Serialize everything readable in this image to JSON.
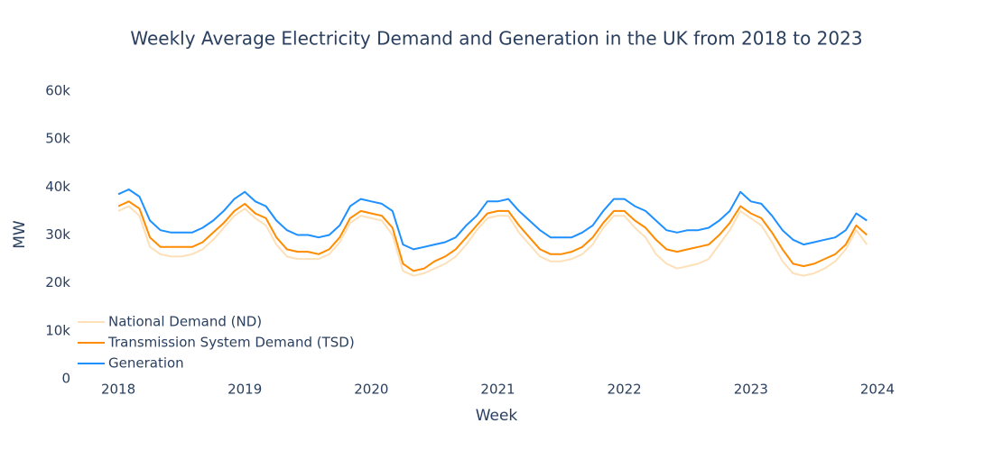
{
  "chart_data": {
    "type": "line",
    "title": "Weekly Average Electricity Demand and Generation in the UK from 2018 to 2023",
    "x_label": "Week",
    "y_label": "MW",
    "x": [
      2018,
      2018.083,
      2018.167,
      2018.25,
      2018.333,
      2018.417,
      2018.5,
      2018.583,
      2018.667,
      2018.75,
      2018.833,
      2018.917,
      2019,
      2019.083,
      2019.167,
      2019.25,
      2019.333,
      2019.417,
      2019.5,
      2019.583,
      2019.667,
      2019.75,
      2019.833,
      2019.917,
      2020,
      2020.083,
      2020.167,
      2020.25,
      2020.333,
      2020.417,
      2020.5,
      2020.583,
      2020.667,
      2020.75,
      2020.833,
      2020.917,
      2021,
      2021.083,
      2021.167,
      2021.25,
      2021.333,
      2021.417,
      2021.5,
      2021.583,
      2021.667,
      2021.75,
      2021.833,
      2021.917,
      2022,
      2022.083,
      2022.167,
      2022.25,
      2022.333,
      2022.417,
      2022.5,
      2022.583,
      2022.667,
      2022.75,
      2022.833,
      2022.917,
      2023,
      2023.083,
      2023.167,
      2023.25,
      2023.333,
      2023.417,
      2023.5,
      2023.583,
      2023.667,
      2023.75,
      2023.833,
      2023.917
    ],
    "series": [
      {
        "name": "National Demand (ND)",
        "color": "#fde0b8",
        "values": [
          35000,
          36000,
          34000,
          27500,
          26000,
          25500,
          25500,
          26000,
          27000,
          29000,
          31500,
          34000,
          35500,
          33500,
          32000,
          28000,
          25500,
          25000,
          25000,
          25000,
          26000,
          28500,
          32500,
          34000,
          33500,
          33000,
          30000,
          22500,
          21500,
          22000,
          23000,
          24000,
          25500,
          28000,
          31000,
          33500,
          34000,
          34000,
          30500,
          28000,
          25500,
          24500,
          24500,
          25000,
          26000,
          28000,
          31500,
          34000,
          34000,
          31500,
          29500,
          26000,
          24000,
          23000,
          23500,
          24000,
          25000,
          28000,
          31000,
          35000,
          33500,
          32000,
          28500,
          24500,
          22000,
          21500,
          22000,
          23000,
          24500,
          27000,
          31000,
          28000
        ]
      },
      {
        "name": "Transmission System Demand (TSD)",
        "color": "#ff8c00",
        "values": [
          36000,
          37000,
          35500,
          29500,
          27500,
          27500,
          27500,
          27500,
          28500,
          30500,
          32500,
          35000,
          36500,
          34500,
          33500,
          29500,
          27000,
          26500,
          26500,
          26000,
          27000,
          29500,
          33500,
          35000,
          34500,
          34000,
          31500,
          24000,
          22500,
          23000,
          24500,
          25500,
          27000,
          29500,
          32000,
          34500,
          35000,
          35000,
          32000,
          29500,
          27000,
          26000,
          26000,
          26500,
          27500,
          29500,
          32500,
          35000,
          35000,
          33000,
          31500,
          29000,
          27000,
          26500,
          27000,
          27500,
          28000,
          30000,
          32500,
          36000,
          34500,
          33500,
          30500,
          27000,
          24000,
          23500,
          24000,
          25000,
          26000,
          28000,
          32000,
          30000
        ]
      },
      {
        "name": "Generation",
        "color": "#1e90ff",
        "values": [
          38500,
          39500,
          38000,
          33000,
          31000,
          30500,
          30500,
          30500,
          31500,
          33000,
          35000,
          37500,
          39000,
          37000,
          36000,
          33000,
          31000,
          30000,
          30000,
          29500,
          30000,
          32000,
          36000,
          37500,
          37000,
          36500,
          35000,
          28000,
          27000,
          27500,
          28000,
          28500,
          29500,
          32000,
          34000,
          37000,
          37000,
          37500,
          35000,
          33000,
          31000,
          29500,
          29500,
          29500,
          30500,
          32000,
          35000,
          37500,
          37500,
          36000,
          35000,
          33000,
          31000,
          30500,
          31000,
          31000,
          31500,
          33000,
          35000,
          39000,
          37000,
          36500,
          34000,
          31000,
          29000,
          28000,
          28500,
          29000,
          29500,
          31000,
          34500,
          33000
        ]
      }
    ],
    "xlim": [
      2017.65,
      2024.35
    ],
    "xticks": [
      2018,
      2019,
      2020,
      2021,
      2022,
      2023,
      2024
    ],
    "ylim": [
      0,
      60000
    ],
    "yticks": [
      0,
      {
        "value": 10000,
        "label": "10k"
      },
      {
        "value": 20000,
        "label": "20k"
      },
      {
        "value": 30000,
        "label": "30k"
      },
      {
        "value": 40000,
        "label": "40k"
      },
      {
        "value": 50000,
        "label": "50k"
      },
      {
        "value": 60000,
        "label": "60k"
      }
    ],
    "legend": "bottom-left",
    "grid": false
  }
}
